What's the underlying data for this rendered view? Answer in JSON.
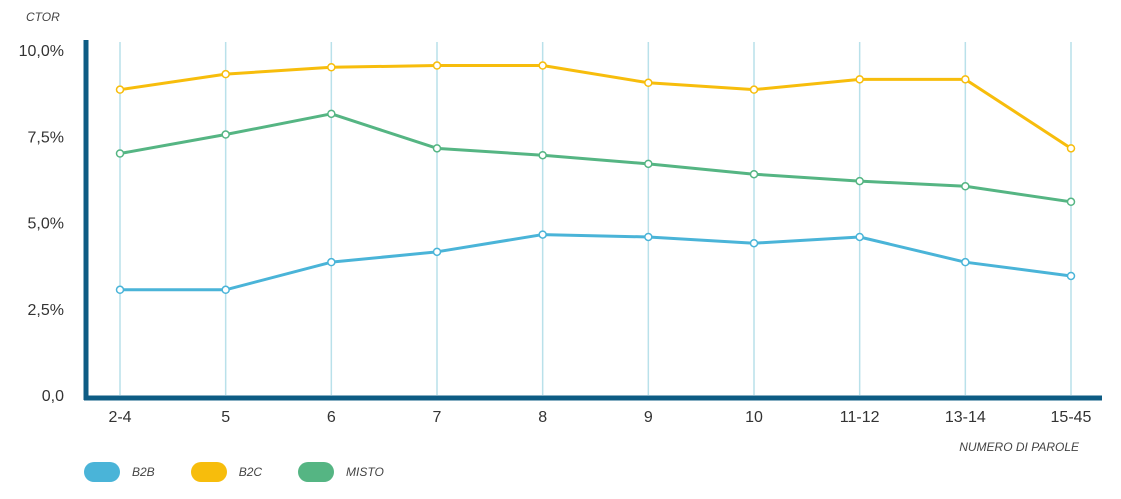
{
  "chart_data": {
    "type": "line",
    "ylabel": "CTOR",
    "xlabel": "NUMERO DI PAROLE",
    "categories": [
      "2-4",
      "5",
      "6",
      "7",
      "8",
      "9",
      "10",
      "11-12",
      "13-14",
      "15-45"
    ],
    "y_ticks": [
      "0,0",
      "2,5%",
      "5,0%",
      "7,5%",
      "10,0%"
    ],
    "ylim": [
      0,
      10
    ],
    "grid": "vertical",
    "legend_position": "bottom-left",
    "series": [
      {
        "name": "B2B",
        "color": "#4ab4d8",
        "values": [
          3.05,
          3.05,
          3.85,
          4.15,
          4.65,
          4.58,
          4.4,
          4.58,
          3.85,
          3.45
        ]
      },
      {
        "name": "B2C",
        "color": "#f7bd0c",
        "values": [
          8.85,
          9.3,
          9.5,
          9.55,
          9.55,
          9.05,
          8.85,
          9.15,
          9.15,
          7.15
        ]
      },
      {
        "name": "MISTO",
        "color": "#55b583",
        "values": [
          7.0,
          7.55,
          8.15,
          7.15,
          6.95,
          6.7,
          6.4,
          6.2,
          6.05,
          5.6
        ]
      }
    ]
  },
  "colors": {
    "axis": "#0e5c84",
    "grid": "#b9e1ea"
  }
}
